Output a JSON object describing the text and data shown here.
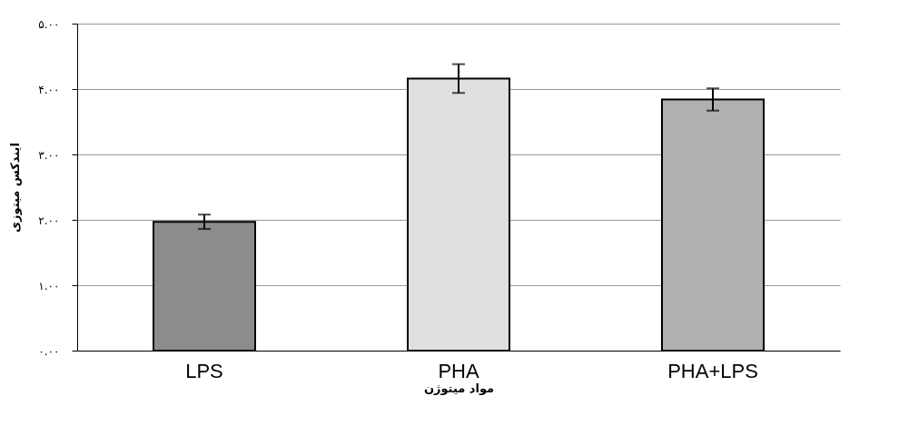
{
  "chart_data": {
    "type": "bar",
    "xlabel": "مواد میتوژن",
    "ylabel": "ایندکس میتوزی",
    "categories": [
      "LPS",
      "PHA",
      "PHA+LPS"
    ],
    "values": [
      1.97,
      4.16,
      3.84
    ],
    "errors": [
      0.11,
      0.22,
      0.17
    ],
    "colors": [
      "#8c8c8c",
      "#e0e0e0",
      "#b0b0b0"
    ],
    "ylim": [
      0,
      5
    ],
    "yticks": [
      {
        "value": 0,
        "label": "۰.۰۰"
      },
      {
        "value": 1,
        "label": "۱.۰۰"
      },
      {
        "value": 2,
        "label": "۲.۰۰"
      },
      {
        "value": 3,
        "label": "۳.۰۰"
      },
      {
        "value": 4,
        "label": "۴.۰۰"
      },
      {
        "value": 5,
        "label": "۵.۰۰"
      }
    ],
    "grid": "y"
  }
}
